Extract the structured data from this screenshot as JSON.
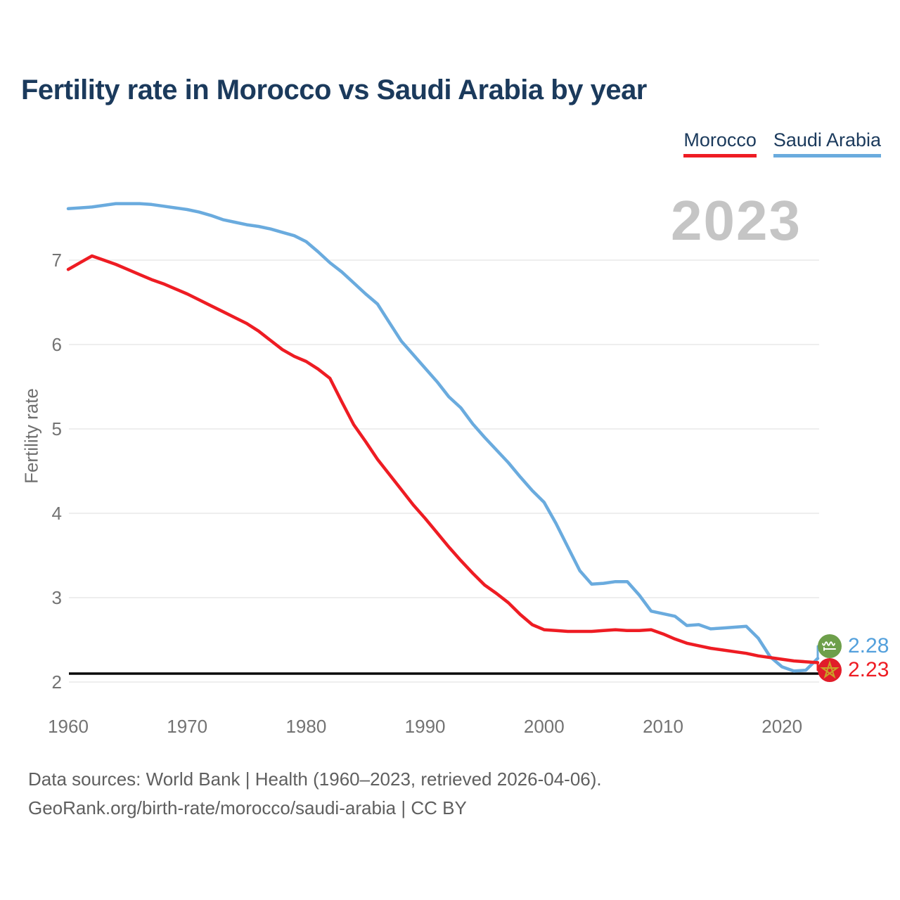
{
  "title": "Fertility rate in Morocco vs Saudi Arabia by year",
  "watermark": "2023",
  "legend": {
    "morocco_label": "Morocco",
    "saudi_label": "Saudi Arabia"
  },
  "y_axis": {
    "label": "Fertility rate",
    "ticks": [
      7,
      6,
      5,
      4,
      3,
      2
    ]
  },
  "x_axis": {
    "ticks": [
      1960,
      1970,
      1980,
      1990,
      2000,
      2010,
      2020
    ]
  },
  "reference_line": {
    "value": 2.1,
    "color": "#000000"
  },
  "end_labels": {
    "saudi_value": "2.28",
    "morocco_value": "2.23"
  },
  "footer": {
    "line1": "Data sources: World Bank | Health (1960–2023, retrieved 2026-04-06).",
    "line2": "GeoRank.org/birth-rate/morocco/saudi-arabia | CC BY"
  },
  "colors": {
    "morocco": "#ee1c23",
    "saudi_arabia": "#6aabde",
    "gridline": "#e9e9e9",
    "reference": "#0a0a0a",
    "title_navy": "#1b3a5c",
    "axis_gray": "#737373",
    "watermark_gray": "#c5c5c5",
    "saudi_flag_green": "#6d9f4a",
    "morocco_flag_red": "#e11d2a",
    "morocco_star_gold": "#c9a227"
  },
  "chart_data": {
    "type": "line",
    "title": "Fertility rate in Morocco vs Saudi Arabia by year",
    "xlabel": "",
    "ylabel": "Fertility rate",
    "xlim": [
      1960,
      2023
    ],
    "ylim": [
      2,
      7.8
    ],
    "grid": "horizontal",
    "legend_position": "top-right",
    "x": [
      1960,
      1961,
      1962,
      1963,
      1964,
      1965,
      1966,
      1967,
      1968,
      1969,
      1970,
      1971,
      1972,
      1973,
      1974,
      1975,
      1976,
      1977,
      1978,
      1979,
      1980,
      1981,
      1982,
      1983,
      1984,
      1985,
      1986,
      1987,
      1988,
      1989,
      1990,
      1991,
      1992,
      1993,
      1994,
      1995,
      1996,
      1997,
      1998,
      1999,
      2000,
      2001,
      2002,
      2003,
      2004,
      2005,
      2006,
      2007,
      2008,
      2009,
      2010,
      2011,
      2012,
      2013,
      2014,
      2015,
      2016,
      2017,
      2018,
      2019,
      2020,
      2021,
      2022,
      2023
    ],
    "series": [
      {
        "name": "Saudi Arabia",
        "color": "#6aabde",
        "final_value": 2.28,
        "values": [
          7.61,
          7.62,
          7.63,
          7.65,
          7.67,
          7.67,
          7.67,
          7.66,
          7.64,
          7.62,
          7.6,
          7.57,
          7.53,
          7.48,
          7.45,
          7.42,
          7.4,
          7.37,
          7.33,
          7.29,
          7.22,
          7.1,
          6.97,
          6.86,
          6.73,
          6.6,
          6.48,
          6.26,
          6.04,
          5.88,
          5.72,
          5.56,
          5.38,
          5.25,
          5.06,
          4.9,
          4.75,
          4.6,
          4.43,
          4.27,
          4.13,
          3.88,
          3.6,
          3.32,
          3.16,
          3.17,
          3.19,
          3.19,
          3.03,
          2.84,
          2.81,
          2.78,
          2.67,
          2.68,
          2.63,
          2.64,
          2.65,
          2.66,
          2.52,
          2.3,
          2.18,
          2.13,
          2.14,
          2.28
        ]
      },
      {
        "name": "Morocco",
        "color": "#ee1c23",
        "final_value": 2.23,
        "values": [
          6.89,
          6.97,
          7.05,
          7.0,
          6.95,
          6.89,
          6.83,
          6.77,
          6.72,
          6.66,
          6.6,
          6.53,
          6.46,
          6.39,
          6.32,
          6.25,
          6.16,
          6.05,
          5.94,
          5.86,
          5.8,
          5.71,
          5.6,
          5.32,
          5.05,
          4.85,
          4.64,
          4.46,
          4.28,
          4.1,
          3.94,
          3.77,
          3.6,
          3.44,
          3.29,
          3.15,
          3.05,
          2.94,
          2.8,
          2.68,
          2.62,
          2.61,
          2.6,
          2.6,
          2.6,
          2.61,
          2.62,
          2.61,
          2.61,
          2.62,
          2.57,
          2.51,
          2.46,
          2.43,
          2.4,
          2.38,
          2.36,
          2.34,
          2.31,
          2.29,
          2.27,
          2.25,
          2.24,
          2.23
        ]
      }
    ]
  }
}
